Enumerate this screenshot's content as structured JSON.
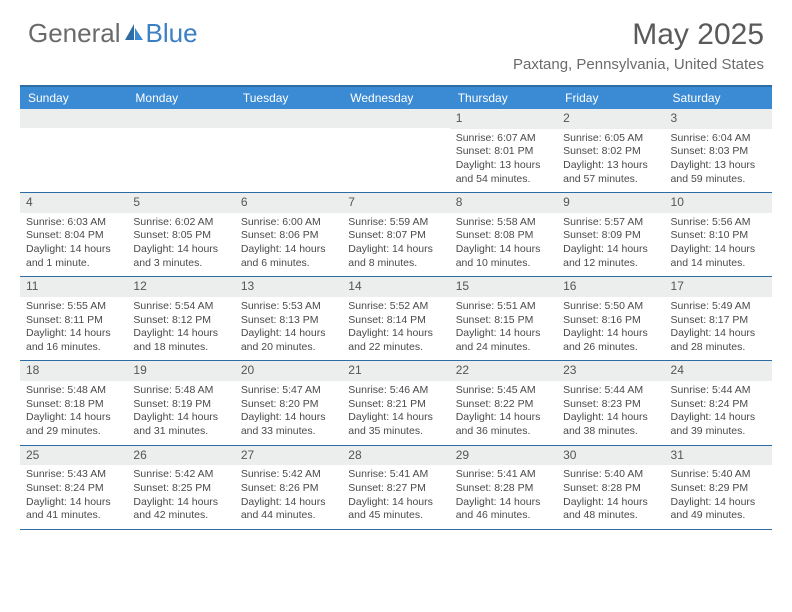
{
  "brand": {
    "part1": "General",
    "part2": "Blue"
  },
  "title": "May 2025",
  "location": "Paxtang, Pennsylvania, United States",
  "colors": {
    "header_bg": "#3b8bd4",
    "accent": "#2e6da4",
    "band": "#eceded",
    "text": "#4a4a4a"
  },
  "day_names": [
    "Sunday",
    "Monday",
    "Tuesday",
    "Wednesday",
    "Thursday",
    "Friday",
    "Saturday"
  ],
  "weeks": [
    [
      {
        "n": "",
        "lines": []
      },
      {
        "n": "",
        "lines": []
      },
      {
        "n": "",
        "lines": []
      },
      {
        "n": "",
        "lines": []
      },
      {
        "n": "1",
        "lines": [
          "Sunrise: 6:07 AM",
          "Sunset: 8:01 PM",
          "Daylight: 13 hours and 54 minutes."
        ]
      },
      {
        "n": "2",
        "lines": [
          "Sunrise: 6:05 AM",
          "Sunset: 8:02 PM",
          "Daylight: 13 hours and 57 minutes."
        ]
      },
      {
        "n": "3",
        "lines": [
          "Sunrise: 6:04 AM",
          "Sunset: 8:03 PM",
          "Daylight: 13 hours and 59 minutes."
        ]
      }
    ],
    [
      {
        "n": "4",
        "lines": [
          "Sunrise: 6:03 AM",
          "Sunset: 8:04 PM",
          "Daylight: 14 hours and 1 minute."
        ]
      },
      {
        "n": "5",
        "lines": [
          "Sunrise: 6:02 AM",
          "Sunset: 8:05 PM",
          "Daylight: 14 hours and 3 minutes."
        ]
      },
      {
        "n": "6",
        "lines": [
          "Sunrise: 6:00 AM",
          "Sunset: 8:06 PM",
          "Daylight: 14 hours and 6 minutes."
        ]
      },
      {
        "n": "7",
        "lines": [
          "Sunrise: 5:59 AM",
          "Sunset: 8:07 PM",
          "Daylight: 14 hours and 8 minutes."
        ]
      },
      {
        "n": "8",
        "lines": [
          "Sunrise: 5:58 AM",
          "Sunset: 8:08 PM",
          "Daylight: 14 hours and 10 minutes."
        ]
      },
      {
        "n": "9",
        "lines": [
          "Sunrise: 5:57 AM",
          "Sunset: 8:09 PM",
          "Daylight: 14 hours and 12 minutes."
        ]
      },
      {
        "n": "10",
        "lines": [
          "Sunrise: 5:56 AM",
          "Sunset: 8:10 PM",
          "Daylight: 14 hours and 14 minutes."
        ]
      }
    ],
    [
      {
        "n": "11",
        "lines": [
          "Sunrise: 5:55 AM",
          "Sunset: 8:11 PM",
          "Daylight: 14 hours and 16 minutes."
        ]
      },
      {
        "n": "12",
        "lines": [
          "Sunrise: 5:54 AM",
          "Sunset: 8:12 PM",
          "Daylight: 14 hours and 18 minutes."
        ]
      },
      {
        "n": "13",
        "lines": [
          "Sunrise: 5:53 AM",
          "Sunset: 8:13 PM",
          "Daylight: 14 hours and 20 minutes."
        ]
      },
      {
        "n": "14",
        "lines": [
          "Sunrise: 5:52 AM",
          "Sunset: 8:14 PM",
          "Daylight: 14 hours and 22 minutes."
        ]
      },
      {
        "n": "15",
        "lines": [
          "Sunrise: 5:51 AM",
          "Sunset: 8:15 PM",
          "Daylight: 14 hours and 24 minutes."
        ]
      },
      {
        "n": "16",
        "lines": [
          "Sunrise: 5:50 AM",
          "Sunset: 8:16 PM",
          "Daylight: 14 hours and 26 minutes."
        ]
      },
      {
        "n": "17",
        "lines": [
          "Sunrise: 5:49 AM",
          "Sunset: 8:17 PM",
          "Daylight: 14 hours and 28 minutes."
        ]
      }
    ],
    [
      {
        "n": "18",
        "lines": [
          "Sunrise: 5:48 AM",
          "Sunset: 8:18 PM",
          "Daylight: 14 hours and 29 minutes."
        ]
      },
      {
        "n": "19",
        "lines": [
          "Sunrise: 5:48 AM",
          "Sunset: 8:19 PM",
          "Daylight: 14 hours and 31 minutes."
        ]
      },
      {
        "n": "20",
        "lines": [
          "Sunrise: 5:47 AM",
          "Sunset: 8:20 PM",
          "Daylight: 14 hours and 33 minutes."
        ]
      },
      {
        "n": "21",
        "lines": [
          "Sunrise: 5:46 AM",
          "Sunset: 8:21 PM",
          "Daylight: 14 hours and 35 minutes."
        ]
      },
      {
        "n": "22",
        "lines": [
          "Sunrise: 5:45 AM",
          "Sunset: 8:22 PM",
          "Daylight: 14 hours and 36 minutes."
        ]
      },
      {
        "n": "23",
        "lines": [
          "Sunrise: 5:44 AM",
          "Sunset: 8:23 PM",
          "Daylight: 14 hours and 38 minutes."
        ]
      },
      {
        "n": "24",
        "lines": [
          "Sunrise: 5:44 AM",
          "Sunset: 8:24 PM",
          "Daylight: 14 hours and 39 minutes."
        ]
      }
    ],
    [
      {
        "n": "25",
        "lines": [
          "Sunrise: 5:43 AM",
          "Sunset: 8:24 PM",
          "Daylight: 14 hours and 41 minutes."
        ]
      },
      {
        "n": "26",
        "lines": [
          "Sunrise: 5:42 AM",
          "Sunset: 8:25 PM",
          "Daylight: 14 hours and 42 minutes."
        ]
      },
      {
        "n": "27",
        "lines": [
          "Sunrise: 5:42 AM",
          "Sunset: 8:26 PM",
          "Daylight: 14 hours and 44 minutes."
        ]
      },
      {
        "n": "28",
        "lines": [
          "Sunrise: 5:41 AM",
          "Sunset: 8:27 PM",
          "Daylight: 14 hours and 45 minutes."
        ]
      },
      {
        "n": "29",
        "lines": [
          "Sunrise: 5:41 AM",
          "Sunset: 8:28 PM",
          "Daylight: 14 hours and 46 minutes."
        ]
      },
      {
        "n": "30",
        "lines": [
          "Sunrise: 5:40 AM",
          "Sunset: 8:28 PM",
          "Daylight: 14 hours and 48 minutes."
        ]
      },
      {
        "n": "31",
        "lines": [
          "Sunrise: 5:40 AM",
          "Sunset: 8:29 PM",
          "Daylight: 14 hours and 49 minutes."
        ]
      }
    ]
  ]
}
